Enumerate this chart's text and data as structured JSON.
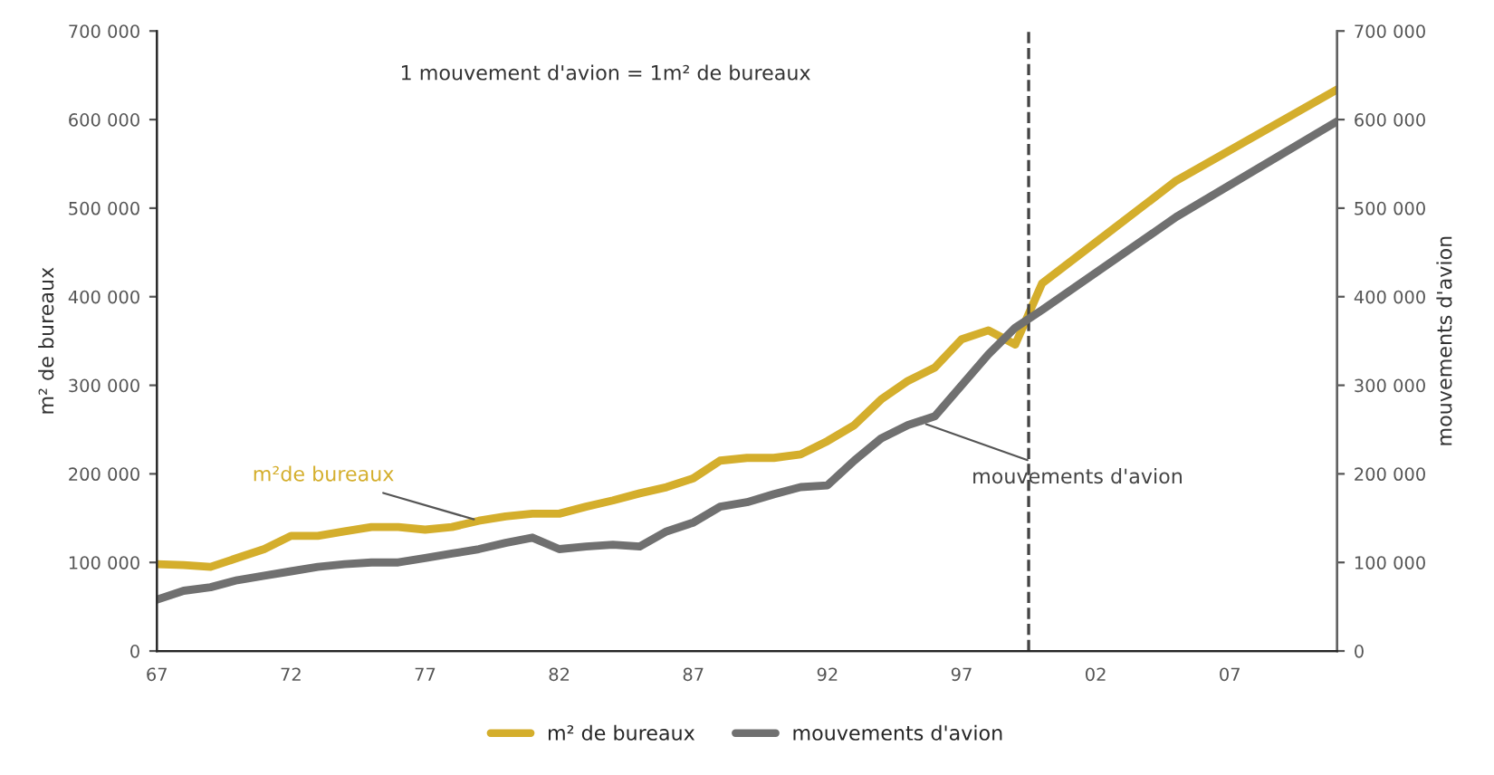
{
  "chart_data": {
    "type": "line",
    "ylabel": "m² de bureaux",
    "y2label": "mouvements d'avion",
    "annotations": [
      "1 mouvement d'avion = 1m² de bureaux",
      {
        "text": "m²de bureaux",
        "x": 1979,
        "y": 147000
      },
      {
        "text": "mouvements d'avion",
        "x": 1995.5,
        "y": 258000
      }
    ],
    "x": [
      1967,
      1968,
      1969,
      1970,
      1971,
      1972,
      1973,
      1974,
      1975,
      1976,
      1977,
      1978,
      1979,
      1980,
      1981,
      1982,
      1983,
      1984,
      1985,
      1986,
      1987,
      1988,
      1989,
      1990,
      1991,
      1992,
      1993,
      1994,
      1995,
      1996,
      1997,
      1998,
      1999,
      2000,
      2005,
      2011
    ],
    "series": [
      {
        "name": "m² de bureaux",
        "color": "#d4ae2c",
        "values": [
          98000,
          97000,
          95000,
          105000,
          115000,
          130000,
          130000,
          135000,
          140000,
          140000,
          137000,
          140000,
          147000,
          152000,
          155000,
          155000,
          163000,
          170000,
          178000,
          185000,
          195000,
          215000,
          218000,
          218000,
          222000,
          237000,
          255000,
          284000,
          305000,
          320000,
          352000,
          362000,
          346000,
          415000,
          531000,
          634000
        ]
      },
      {
        "name": "mouvements d'avion",
        "color": "#707070",
        "axis": "y2",
        "values": [
          58000,
          68000,
          72000,
          80000,
          85000,
          90000,
          95000,
          98000,
          100000,
          100000,
          105000,
          110000,
          115000,
          122000,
          128000,
          115000,
          118000,
          120000,
          118000,
          135000,
          145000,
          163000,
          168000,
          177000,
          185000,
          187000,
          215000,
          240000,
          255000,
          265000,
          300000,
          335000,
          365000,
          385000,
          490000,
          598000
        ]
      }
    ],
    "xlim": [
      1967,
      2011
    ],
    "xticks": [
      {
        "value": 1967,
        "label": "67"
      },
      {
        "value": 1972,
        "label": "72"
      },
      {
        "value": 1977,
        "label": "77"
      },
      {
        "value": 1982,
        "label": "82"
      },
      {
        "value": 1987,
        "label": "87"
      },
      {
        "value": 1992,
        "label": "92"
      },
      {
        "value": 1997,
        "label": "97"
      },
      {
        "value": 2002,
        "label": "02"
      },
      {
        "value": 2007,
        "label": "07"
      }
    ],
    "ylim": [
      0,
      700000
    ],
    "yticks": [
      0,
      {
        "value": 100000,
        "label": "100 000"
      },
      {
        "value": 200000,
        "label": "200 000"
      },
      {
        "value": 300000,
        "label": "300 000"
      },
      {
        "value": 400000,
        "label": "400 000"
      },
      {
        "value": 500000,
        "label": "500 000"
      },
      {
        "value": 600000,
        "label": "600 000"
      },
      {
        "value": 700000,
        "label": "700 000"
      }
    ],
    "y2lim": [
      0,
      700000
    ],
    "y2ticks": [
      0,
      {
        "value": 100000,
        "label": "100 000"
      },
      {
        "value": 200000,
        "label": "200 000"
      },
      {
        "value": 300000,
        "label": "300 000"
      },
      {
        "value": 400000,
        "label": "400 000"
      },
      {
        "value": 500000,
        "label": "500 000"
      },
      {
        "value": 600000,
        "label": "600 000"
      },
      {
        "value": 700000,
        "label": "700 000"
      }
    ],
    "ref_lines": [
      {
        "axis": "x",
        "value": 1999.5,
        "color": "#444444",
        "line_style": "dashed"
      }
    ],
    "grid": false,
    "legend": "bottom",
    "line_style": "solid",
    "marker": "none"
  }
}
